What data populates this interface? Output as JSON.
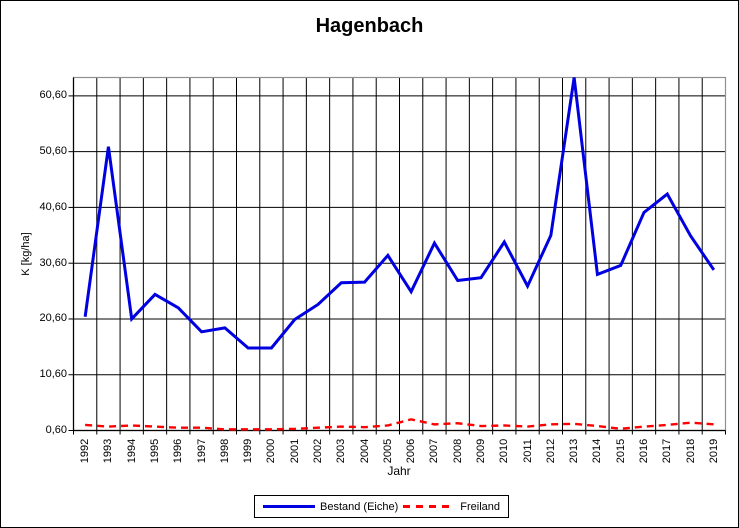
{
  "chart_data": {
    "type": "line",
    "title": "Hagenbach",
    "xlabel": "Jahr",
    "ylabel": "K [kg/ha]",
    "categories": [
      "1992",
      "1993",
      "1994",
      "1995",
      "1996",
      "1997",
      "1998",
      "1999",
      "2000",
      "2001",
      "2002",
      "2003",
      "2004",
      "2005",
      "2006",
      "2007",
      "2008",
      "2009",
      "2010",
      "2011",
      "2012",
      "2013",
      "2014",
      "2015",
      "2016",
      "2017",
      "2018",
      "2019"
    ],
    "series": [
      {
        "name": "Bestand (Eiche)",
        "color": "#0000E0",
        "line_style": "solid",
        "values": [
          21.0,
          51.5,
          20.6,
          25.0,
          22.6,
          18.3,
          19.0,
          15.4,
          15.4,
          20.5,
          23.2,
          27.1,
          27.2,
          32.0,
          25.5,
          34.2,
          27.5,
          28.0,
          34.4,
          26.5,
          35.6,
          63.9,
          28.6,
          30.2,
          39.7,
          43.0,
          35.5,
          29.4
        ]
      },
      {
        "name": "Freiland",
        "color": "#FF0000",
        "line_style": "dashed",
        "values": [
          1.6,
          1.3,
          1.5,
          1.3,
          1.1,
          1.1,
          0.8,
          0.8,
          0.8,
          0.9,
          1.1,
          1.3,
          1.2,
          1.5,
          2.6,
          1.7,
          1.9,
          1.4,
          1.5,
          1.3,
          1.7,
          1.8,
          1.4,
          0.9,
          1.3,
          1.6,
          2.0,
          1.7
        ]
      }
    ],
    "ylim": [
      0.6,
      63.9
    ],
    "yticks": [
      {
        "value": 0.6,
        "label": "0,60"
      },
      {
        "value": 10.6,
        "label": "10,60"
      },
      {
        "value": 20.6,
        "label": "20,60"
      },
      {
        "value": 30.6,
        "label": "30,60"
      },
      {
        "value": 40.6,
        "label": "40,60"
      },
      {
        "value": 50.6,
        "label": "50,60"
      },
      {
        "value": 60.6,
        "label": "60,60"
      }
    ],
    "grid": true,
    "legend_position": "bottom-center",
    "x_tick_label_rotation": -90,
    "plot_border_color": "#909090",
    "gridline_color": "#000000"
  }
}
